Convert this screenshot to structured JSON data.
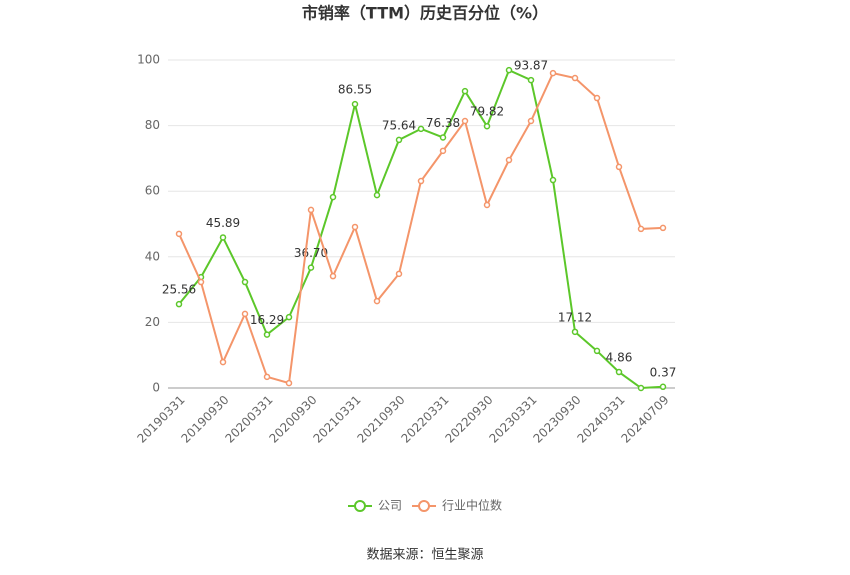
{
  "chart_data": {
    "type": "line",
    "title": "市销率（TTM）历史百分位（%）",
    "source": "数据来源：恒生聚源",
    "categories": [
      "20190331",
      null,
      "20190930",
      null,
      "20200331",
      null,
      "20200930",
      null,
      "20210331",
      null,
      "20210930",
      null,
      "20220331",
      null,
      "20220930",
      null,
      "20230331",
      null,
      "20230930",
      null,
      "20240331",
      null,
      "20240709"
    ],
    "series": [
      {
        "name": "公司",
        "color": "#5cc72a",
        "values": [
          25.56,
          33.8,
          45.89,
          32.3,
          16.29,
          21.6,
          36.7,
          58.2,
          86.55,
          58.8,
          75.64,
          79.0,
          76.38,
          90.5,
          79.82,
          96.9,
          93.87,
          63.4,
          17.12,
          11.3,
          4.86,
          0,
          0.37
        ],
        "value_labels": [
          "25.56",
          null,
          "45.89",
          null,
          "16.29",
          null,
          "36.70",
          null,
          "86.55",
          null,
          "75.64",
          null,
          "76.38",
          null,
          "79.82",
          null,
          "93.87",
          null,
          "17.12",
          null,
          "4.86",
          null,
          "0.37"
        ]
      },
      {
        "name": "行业中位数",
        "color": "#f4956a",
        "values": [
          47.0,
          32.3,
          7.9,
          22.6,
          3.4,
          1.5,
          54.3,
          34.1,
          49.1,
          26.5,
          34.8,
          63.1,
          72.3,
          81.4,
          55.8,
          69.5,
          81.4,
          96.0,
          94.5,
          88.4,
          67.4,
          48.5,
          48.8
        ]
      }
    ],
    "ylim": [
      0,
      100
    ],
    "yticks": [
      0,
      20,
      40,
      60,
      80,
      100
    ],
    "grid": true,
    "legend": "bottom"
  }
}
